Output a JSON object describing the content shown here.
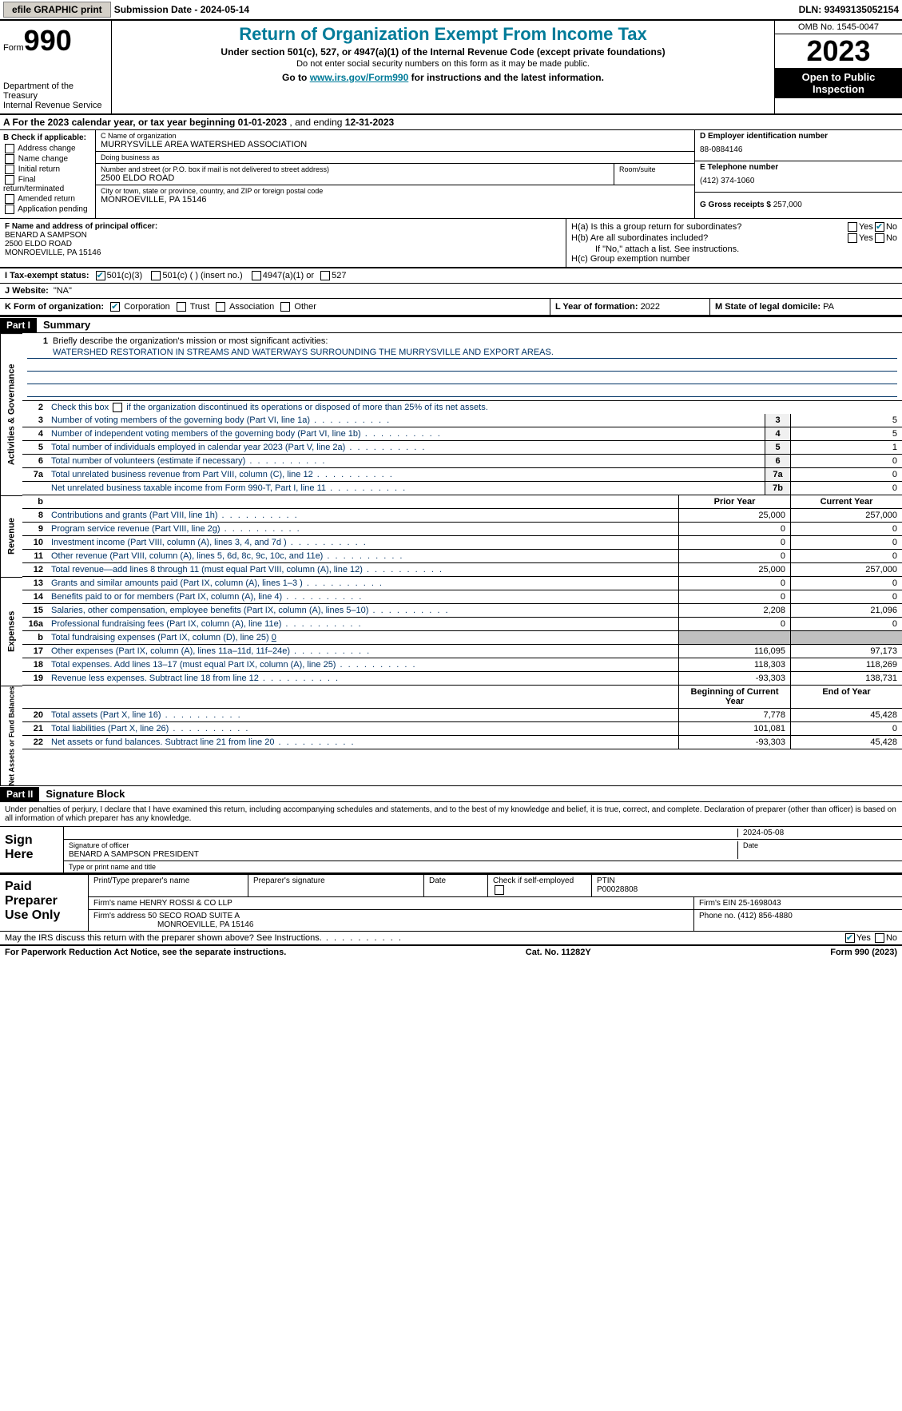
{
  "topbar": {
    "efile_btn": "efile GRAPHIC print",
    "subdate_label": "Submission Date - ",
    "subdate": "2024-05-14",
    "dln_label": "DLN: ",
    "dln": "93493135052154"
  },
  "header": {
    "form_label": "Form",
    "form_num": "990",
    "dept": "Department of the Treasury\nInternal Revenue Service",
    "title": "Return of Organization Exempt From Income Tax",
    "sub": "Under section 501(c), 527, or 4947(a)(1) of the Internal Revenue Code (except private foundations)",
    "sub2": "Do not enter social security numbers on this form as it may be made public.",
    "link_pre": "Go to ",
    "link_url": "www.irs.gov/Form990",
    "link_post": " for instructions and the latest information.",
    "omb": "OMB No. 1545-0047",
    "year": "2023",
    "open": "Open to Public Inspection"
  },
  "row_a": {
    "text_pre": "A  For the 2023 calendar year, or tax year beginning ",
    "begin": "01-01-2023",
    "text_mid": "   , and ending ",
    "end": "12-31-2023"
  },
  "col_b": {
    "label": "B Check if applicable:",
    "items": [
      "Address change",
      "Name change",
      "Initial return",
      "Final return/terminated",
      "Amended return",
      "Application pending"
    ]
  },
  "col_c": {
    "name_label": "C Name of organization",
    "name": "MURRYSVILLE AREA WATERSHED ASSOCIATION",
    "dba_label": "Doing business as",
    "dba": "",
    "street_label": "Number and street (or P.O. box if mail is not delivered to street address)",
    "street": "2500 ELDO ROAD",
    "room_label": "Room/suite",
    "city_label": "City or town, state or province, country, and ZIP or foreign postal code",
    "city": "MONROEVILLE, PA  15146"
  },
  "col_d": {
    "ein_label": "D Employer identification number",
    "ein": "88-0884146",
    "phone_label": "E Telephone number",
    "phone": "(412) 374-1060",
    "gross_label": "G Gross receipts $ ",
    "gross": "257,000"
  },
  "block_f": {
    "label": "F  Name and address of principal officer:",
    "name": "BENARD A SAMPSON",
    "addr1": "2500 ELDO ROAD",
    "addr2": "MONROEVILLE, PA  15146"
  },
  "block_h": {
    "ha": "H(a)  Is this a group return for subordinates?",
    "hb": "H(b)  Are all subordinates included?",
    "hb_note": "If \"No,\" attach a list. See instructions.",
    "hc": "H(c)  Group exemption number ",
    "yes": "Yes",
    "no": "No"
  },
  "row_i": {
    "label": "I   Tax-exempt status:",
    "c3": "501(c)(3)",
    "c": "501(c) (  ) (insert no.)",
    "a1": "4947(a)(1) or",
    "s527": "527"
  },
  "row_j": {
    "label": "J   Website: ",
    "val": "\"NA\""
  },
  "row_k": {
    "label": "K Form of organization:",
    "corp": "Corporation",
    "trust": "Trust",
    "assoc": "Association",
    "other": "Other"
  },
  "row_l": {
    "label": "L Year of formation: ",
    "val": "2022"
  },
  "row_m": {
    "label": "M State of legal domicile: ",
    "val": "PA"
  },
  "part1": {
    "hdr": "Part I",
    "title": "Summary"
  },
  "mission": {
    "num": "1",
    "label": "Briefly describe the organization's mission or most significant activities:",
    "text": "WATERSHED RESTORATION IN STREAMS AND WATERWAYS SURROUNDING THE MURRYSVILLE AND EXPORT AREAS."
  },
  "gov_rows": [
    {
      "n": "2",
      "d": "Check this box ",
      "d2": " if the organization discontinued its operations or disposed of more than 25% of its net assets.",
      "box": "",
      "v": ""
    },
    {
      "n": "3",
      "d": "Number of voting members of the governing body (Part VI, line 1a)",
      "box": "3",
      "v": "5"
    },
    {
      "n": "4",
      "d": "Number of independent voting members of the governing body (Part VI, line 1b)",
      "box": "4",
      "v": "5"
    },
    {
      "n": "5",
      "d": "Total number of individuals employed in calendar year 2023 (Part V, line 2a)",
      "box": "5",
      "v": "1"
    },
    {
      "n": "6",
      "d": "Total number of volunteers (estimate if necessary)",
      "box": "6",
      "v": "0"
    },
    {
      "n": "7a",
      "d": "Total unrelated business revenue from Part VIII, column (C), line 12",
      "box": "7a",
      "v": "0"
    },
    {
      "n": "",
      "d": "Net unrelated business taxable income from Form 990-T, Part I, line 11",
      "box": "7b",
      "v": "0"
    }
  ],
  "rev_hdr": {
    "b": "b",
    "py": "Prior Year",
    "cy": "Current Year"
  },
  "rev_rows": [
    {
      "n": "8",
      "d": "Contributions and grants (Part VIII, line 1h)",
      "py": "25,000",
      "cy": "257,000"
    },
    {
      "n": "9",
      "d": "Program service revenue (Part VIII, line 2g)",
      "py": "0",
      "cy": "0"
    },
    {
      "n": "10",
      "d": "Investment income (Part VIII, column (A), lines 3, 4, and 7d )",
      "py": "0",
      "cy": "0"
    },
    {
      "n": "11",
      "d": "Other revenue (Part VIII, column (A), lines 5, 6d, 8c, 9c, 10c, and 11e)",
      "py": "0",
      "cy": "0"
    },
    {
      "n": "12",
      "d": "Total revenue—add lines 8 through 11 (must equal Part VIII, column (A), line 12)",
      "py": "25,000",
      "cy": "257,000"
    }
  ],
  "exp_rows": [
    {
      "n": "13",
      "d": "Grants and similar amounts paid (Part IX, column (A), lines 1–3 )",
      "py": "0",
      "cy": "0"
    },
    {
      "n": "14",
      "d": "Benefits paid to or for members (Part IX, column (A), line 4)",
      "py": "0",
      "cy": "0"
    },
    {
      "n": "15",
      "d": "Salaries, other compensation, employee benefits (Part IX, column (A), lines 5–10)",
      "py": "2,208",
      "cy": "21,096"
    },
    {
      "n": "16a",
      "d": "Professional fundraising fees (Part IX, column (A), line 11e)",
      "py": "0",
      "cy": "0"
    },
    {
      "n": "b",
      "d": "Total fundraising expenses (Part IX, column (D), line 25) ",
      "dval": "0",
      "py": "",
      "cy": "",
      "gray": true
    },
    {
      "n": "17",
      "d": "Other expenses (Part IX, column (A), lines 11a–11d, 11f–24e)",
      "py": "116,095",
      "cy": "97,173"
    },
    {
      "n": "18",
      "d": "Total expenses. Add lines 13–17 (must equal Part IX, column (A), line 25)",
      "py": "118,303",
      "cy": "118,269"
    },
    {
      "n": "19",
      "d": "Revenue less expenses. Subtract line 18 from line 12",
      "py": "-93,303",
      "cy": "138,731"
    }
  ],
  "na_hdr": {
    "py": "Beginning of Current Year",
    "cy": "End of Year"
  },
  "na_rows": [
    {
      "n": "20",
      "d": "Total assets (Part X, line 16)",
      "py": "7,778",
      "cy": "45,428"
    },
    {
      "n": "21",
      "d": "Total liabilities (Part X, line 26)",
      "py": "101,081",
      "cy": "0"
    },
    {
      "n": "22",
      "d": "Net assets or fund balances. Subtract line 21 from line 20",
      "py": "-93,303",
      "cy": "45,428"
    }
  ],
  "sidebars": {
    "gov": "Activities & Governance",
    "rev": "Revenue",
    "exp": "Expenses",
    "na": "Net Assets or Fund Balances"
  },
  "part2": {
    "hdr": "Part II",
    "title": "Signature Block"
  },
  "sig_text": "Under penalties of perjury, I declare that I have examined this return, including accompanying schedules and statements, and to the best of my knowledge and belief, it is true, correct, and complete. Declaration of preparer (other than officer) is based on all information of which preparer has any knowledge.",
  "sign_here": {
    "label": "Sign Here",
    "date": "2024-05-08",
    "sig_label": "Signature of officer",
    "officer": "BENARD A SAMPSON  PRESIDENT",
    "type_label": "Type or print name and title",
    "date_label": "Date"
  },
  "paid": {
    "label": "Paid Preparer Use Only",
    "h_name": "Print/Type preparer's name",
    "h_sig": "Preparer's signature",
    "h_date": "Date",
    "h_check": "Check         if self-employed",
    "h_ptin": "PTIN",
    "ptin": "P00028808",
    "firm_name_label": "Firm's name    ",
    "firm_name": "HENRY ROSSI & CO LLP",
    "firm_ein_label": "Firm's EIN  ",
    "firm_ein": "25-1698043",
    "firm_addr_label": "Firm's address ",
    "firm_addr": "50 SECO ROAD SUITE A",
    "firm_city": "MONROEVILLE, PA  15146",
    "phone_label": "Phone no. ",
    "phone": "(412) 856-4880"
  },
  "footer_q": "May the IRS discuss this return with the preparer shown above? See Instructions.",
  "bottom": {
    "left": "For Paperwork Reduction Act Notice, see the separate instructions.",
    "mid": "Cat. No. 11282Y",
    "right_pre": "Form ",
    "right_form": "990",
    "right_post": " (2023)"
  },
  "yes": "Yes",
  "no": "No"
}
